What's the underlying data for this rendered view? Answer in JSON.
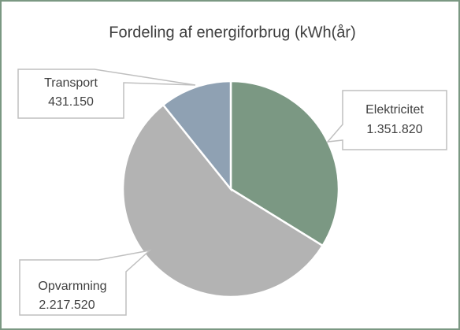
{
  "chart_data": {
    "type": "pie",
    "title": "Fordeling af energiforbrug (kWh(år)",
    "categories": [
      "Elektricitet",
      "Opvarmning",
      "Transport"
    ],
    "values": [
      1351820,
      2217520,
      431150
    ],
    "value_labels": [
      "1.351.820",
      "2.217.520",
      "431.150"
    ],
    "colors": [
      "#7b9883",
      "#b3b3b3",
      "#8fa1b3"
    ]
  }
}
